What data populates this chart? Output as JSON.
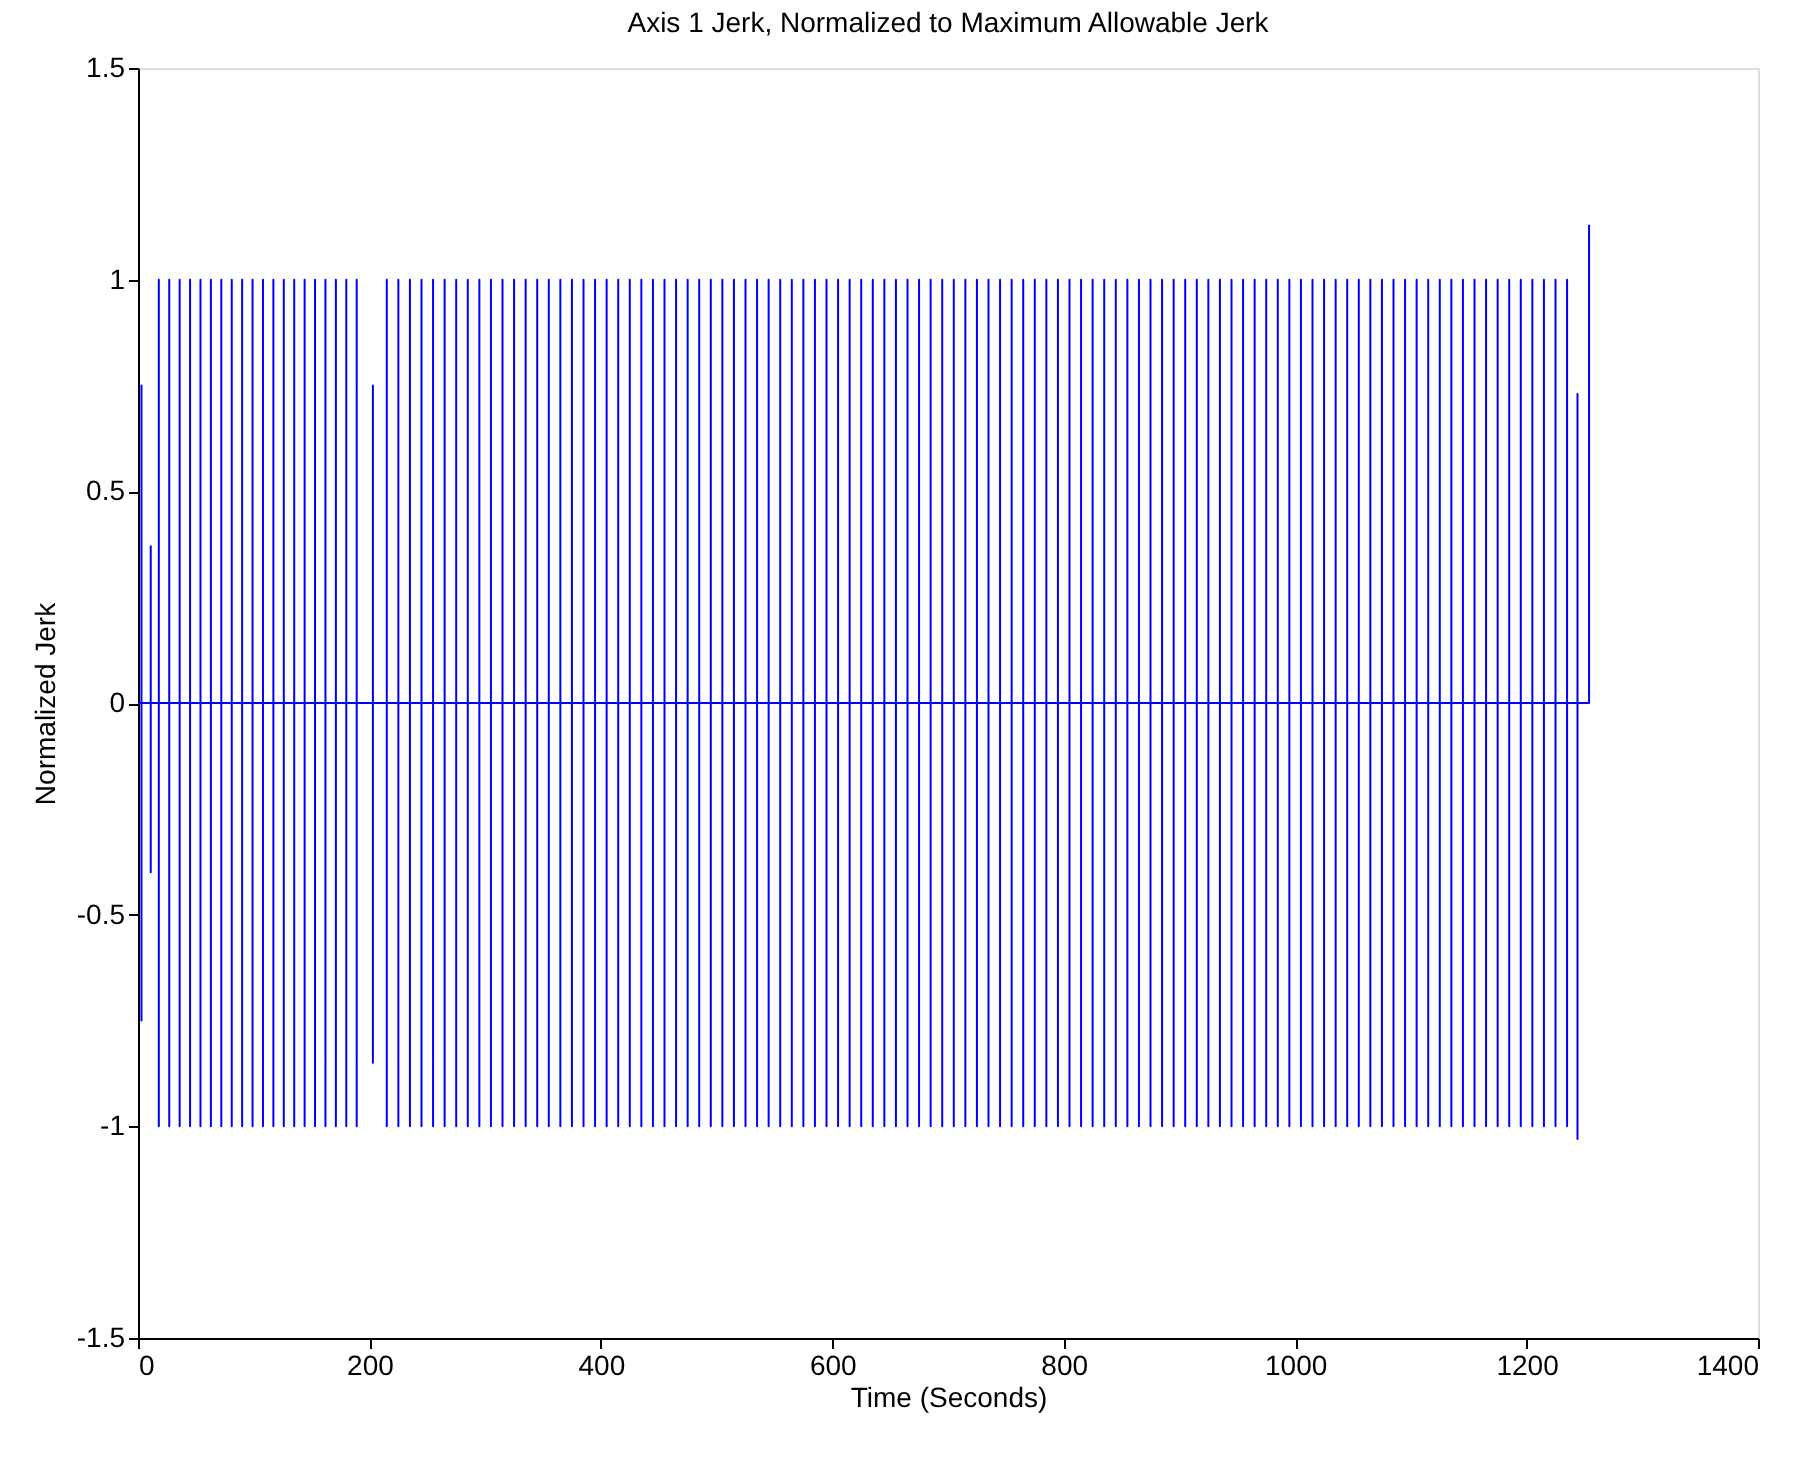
{
  "chart_data": {
    "type": "line",
    "title": "Axis 1 Jerk, Normalized to Maximum Allowable Jerk",
    "xlabel": "Time (Seconds)",
    "ylabel": "Normalized Jerk",
    "xlim": [
      0,
      1400
    ],
    "xticks": [
      0,
      200,
      400,
      600,
      800,
      1000,
      1200,
      1400
    ],
    "ylim": [
      -1.5,
      1.5
    ],
    "yticks": [
      -1.5,
      -1,
      -0.5,
      0,
      0.5,
      1,
      1.5
    ],
    "series": [
      {
        "color": "#0000ff",
        "x": [
          0,
          3,
          3,
          3,
          3,
          11,
          11,
          11,
          11,
          18,
          18,
          18,
          18,
          27,
          27,
          27,
          27,
          36,
          36,
          36,
          36,
          45,
          45,
          45,
          45,
          54,
          54,
          54,
          54,
          63,
          63,
          63,
          63,
          72,
          72,
          72,
          72,
          81,
          81,
          81,
          81,
          90,
          90,
          90,
          90,
          99,
          99,
          99,
          99,
          108,
          108,
          108,
          108,
          117,
          117,
          117,
          117,
          126,
          126,
          126,
          126,
          135,
          135,
          135,
          135,
          144,
          144,
          144,
          144,
          153,
          153,
          153,
          153,
          162,
          162,
          162,
          162,
          171,
          171,
          171,
          171,
          180,
          180,
          180,
          180,
          189,
          189,
          189,
          189,
          203,
          203,
          203,
          203,
          215,
          215,
          215,
          215,
          225,
          225,
          225,
          225,
          235,
          235,
          235,
          235,
          245,
          245,
          245,
          245,
          255,
          255,
          255,
          255,
          265,
          265,
          265,
          265,
          275,
          275,
          275,
          275,
          285,
          285,
          285,
          285,
          295,
          295,
          295,
          295,
          305,
          305,
          305,
          305,
          315,
          315,
          315,
          315,
          325,
          325,
          325,
          325,
          335,
          335,
          335,
          335,
          345,
          345,
          345,
          345,
          355,
          355,
          355,
          355,
          365,
          365,
          365,
          365,
          375,
          375,
          375,
          375,
          385,
          385,
          385,
          385,
          395,
          395,
          395,
          395,
          405,
          405,
          405,
          405,
          415,
          415,
          415,
          415,
          425,
          425,
          425,
          425,
          435,
          435,
          435,
          435,
          445,
          445,
          445,
          445,
          455,
          455,
          455,
          455,
          465,
          465,
          465,
          465,
          475,
          475,
          475,
          475,
          485,
          485,
          485,
          485,
          495,
          495,
          495,
          495,
          505,
          505,
          505,
          505,
          515,
          515,
          515,
          515,
          525,
          525,
          525,
          525,
          535,
          535,
          535,
          535,
          545,
          545,
          545,
          545,
          555,
          555,
          555,
          555,
          565,
          565,
          565,
          565,
          575,
          575,
          575,
          575,
          585,
          585,
          585,
          585,
          595,
          595,
          595,
          595,
          605,
          605,
          605,
          605,
          615,
          615,
          615,
          615,
          625,
          625,
          625,
          625,
          635,
          635,
          635,
          635,
          645,
          645,
          645,
          645,
          655,
          655,
          655,
          655,
          665,
          665,
          665,
          665,
          675,
          675,
          675,
          675,
          685,
          685,
          685,
          685,
          695,
          695,
          695,
          695,
          705,
          705,
          705,
          705,
          715,
          715,
          715,
          715,
          725,
          725,
          725,
          725,
          735,
          735,
          735,
          735,
          745,
          745,
          745,
          745,
          755,
          755,
          755,
          755,
          765,
          765,
          765,
          765,
          775,
          775,
          775,
          775,
          785,
          785,
          785,
          785,
          795,
          795,
          795,
          795,
          805,
          805,
          805,
          805,
          815,
          815,
          815,
          815,
          825,
          825,
          825,
          825,
          835,
          835,
          835,
          835,
          845,
          845,
          845,
          845,
          855,
          855,
          855,
          855,
          865,
          865,
          865,
          865,
          875,
          875,
          875,
          875,
          885,
          885,
          885,
          885,
          895,
          895,
          895,
          895,
          905,
          905,
          905,
          905,
          915,
          915,
          915,
          915,
          925,
          925,
          925,
          925,
          935,
          935,
          935,
          935,
          945,
          945,
          945,
          945,
          955,
          955,
          955,
          955,
          965,
          965,
          965,
          965,
          975,
          975,
          975,
          975,
          985,
          985,
          985,
          985,
          995,
          995,
          995,
          995,
          1005,
          1005,
          1005,
          1005,
          1015,
          1015,
          1015,
          1015,
          1025,
          1025,
          1025,
          1025,
          1035,
          1035,
          1035,
          1035,
          1045,
          1045,
          1045,
          1045,
          1055,
          1055,
          1055,
          1055,
          1065,
          1065,
          1065,
          1065,
          1075,
          1075,
          1075,
          1075,
          1085,
          1085,
          1085,
          1085,
          1095,
          1095,
          1095,
          1095,
          1105,
          1105,
          1105,
          1105,
          1115,
          1115,
          1115,
          1115,
          1125,
          1125,
          1125,
          1125,
          1135,
          1135,
          1135,
          1135,
          1145,
          1145,
          1145,
          1145,
          1155,
          1155,
          1155,
          1155,
          1165,
          1165,
          1165,
          1165,
          1175,
          1175,
          1175,
          1175,
          1185,
          1185,
          1185,
          1185,
          1195,
          1195,
          1195,
          1195,
          1205,
          1205,
          1205,
          1205,
          1215,
          1215,
          1215,
          1215,
          1225,
          1225,
          1225,
          1225,
          1235,
          1235,
          1235,
          1235,
          1244,
          1244,
          1244,
          1244,
          1254,
          1254
        ],
        "values": [
          0,
          0,
          0.75,
          -0.75,
          0,
          0,
          0.37,
          -0.4,
          0,
          0,
          1,
          -1,
          0,
          0,
          1,
          -1,
          0,
          0,
          1,
          -1,
          0,
          0,
          1,
          -1,
          0,
          0,
          1,
          -1,
          0,
          0,
          1,
          -1,
          0,
          0,
          1,
          -1,
          0,
          0,
          1,
          -1,
          0,
          0,
          1,
          -1,
          0,
          0,
          1,
          -1,
          0,
          0,
          1,
          -1,
          0,
          0,
          1,
          -1,
          0,
          0,
          1,
          -1,
          0,
          0,
          1,
          -1,
          0,
          0,
          1,
          -1,
          0,
          0,
          1,
          -1,
          0,
          0,
          1,
          -1,
          0,
          0,
          1,
          -1,
          0,
          0,
          1,
          -1,
          0,
          0,
          1,
          -1,
          0,
          0,
          0.75,
          -0.85,
          0,
          0,
          1,
          -1,
          0,
          0,
          1,
          -1,
          0,
          0,
          1,
          -1,
          0,
          0,
          1,
          -1,
          0,
          0,
          1,
          -1,
          0,
          0,
          1,
          -1,
          0,
          0,
          1,
          -1,
          0,
          0,
          1,
          -1,
          0,
          0,
          1,
          -1,
          0,
          0,
          1,
          -1,
          0,
          0,
          1,
          -1,
          0,
          0,
          1,
          -1,
          0,
          0,
          1,
          -1,
          0,
          0,
          1,
          -1,
          0,
          0,
          1,
          -1,
          0,
          0,
          1,
          -1,
          0,
          0,
          1,
          -1,
          0,
          0,
          1,
          -1,
          0,
          0,
          1,
          -1,
          0,
          0,
          1,
          -1,
          0,
          0,
          1,
          -1,
          0,
          0,
          1,
          -1,
          0,
          0,
          1,
          -1,
          0,
          0,
          1,
          -1,
          0,
          0,
          1,
          -1,
          0,
          0,
          1,
          -1,
          0,
          0,
          1,
          -1,
          0,
          0,
          1,
          -1,
          0,
          0,
          1,
          -1,
          0,
          0,
          1,
          -1,
          0,
          0,
          1,
          -1,
          0,
          0,
          1,
          -1,
          0,
          0,
          1,
          -1,
          0,
          0,
          1,
          -1,
          0,
          0,
          1,
          -1,
          0,
          0,
          1,
          -1,
          0,
          0,
          1,
          -1,
          0,
          0,
          1,
          -1,
          0,
          0,
          1,
          -1,
          0,
          0,
          1,
          -1,
          0,
          0,
          1,
          -1,
          0,
          0,
          1,
          -1,
          0,
          0,
          1,
          -1,
          0,
          0,
          1,
          -1,
          0,
          0,
          1,
          -1,
          0,
          0,
          1,
          -1,
          0,
          0,
          1,
          -1,
          0,
          0,
          1,
          -1,
          0,
          0,
          1,
          -1,
          0,
          0,
          1,
          -1,
          0,
          0,
          1,
          -1,
          0,
          0,
          1,
          -1,
          0,
          0,
          1,
          -1,
          0,
          0,
          1,
          -1,
          0,
          0,
          1,
          -1,
          0,
          0,
          1,
          -1,
          0,
          0,
          1,
          -1,
          0,
          0,
          1,
          -1,
          0,
          0,
          1,
          -1,
          0,
          0,
          1,
          -1,
          0,
          0,
          1,
          -1,
          0,
          0,
          1,
          -1,
          0,
          0,
          1,
          -1,
          0,
          0,
          1,
          -1,
          0,
          0,
          1,
          -1,
          0,
          0,
          1,
          -1,
          0,
          0,
          1,
          -1,
          0,
          0,
          1,
          -1,
          0,
          0,
          1,
          -1,
          0,
          0,
          1,
          -1,
          0,
          0,
          1,
          -1,
          0,
          0,
          1,
          -1,
          0,
          0,
          1,
          -1,
          0,
          0,
          1,
          -1,
          0,
          0,
          1,
          -1,
          0,
          0,
          1,
          -1,
          0,
          0,
          1,
          -1,
          0,
          0,
          1,
          -1,
          0,
          0,
          1,
          -1,
          0,
          0,
          1,
          -1,
          0,
          0,
          1,
          -1,
          0,
          0,
          1,
          -1,
          0,
          0,
          1,
          -1,
          0,
          0,
          1,
          -1,
          0,
          0,
          1,
          -1,
          0,
          0,
          1,
          -1,
          0,
          0,
          1,
          -1,
          0,
          0,
          1,
          -1,
          0,
          0,
          1,
          -1,
          0,
          0,
          1,
          -1,
          0,
          0,
          1,
          -1,
          0,
          0,
          1,
          -1,
          0,
          0,
          1,
          -1,
          0,
          0,
          1,
          -1,
          0,
          0,
          1,
          -1,
          0,
          0,
          1,
          -1,
          0,
          0,
          1,
          -1,
          0,
          0,
          1,
          -1,
          0,
          0,
          1,
          -1,
          0,
          0,
          1,
          -1,
          0,
          0,
          1,
          -1,
          0,
          0,
          1,
          -1,
          0,
          0,
          1,
          -1,
          0,
          0,
          0.73,
          -1.03,
          0,
          0,
          1.13
        ]
      }
    ]
  }
}
